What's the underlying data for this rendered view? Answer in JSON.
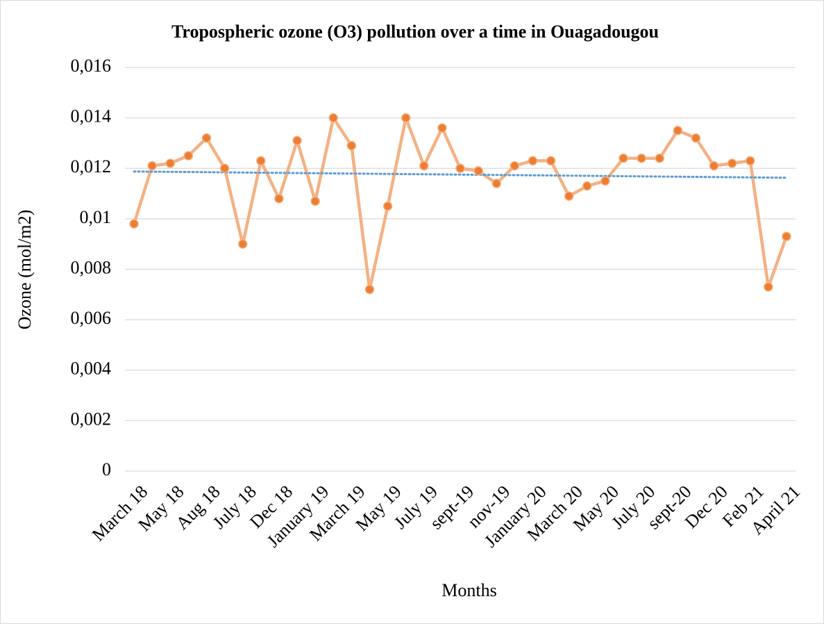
{
  "chart_data": {
    "type": "line",
    "title": "Tropospheric ozone (O3) pollution over a time in Ouagadougou",
    "x_label": "Months",
    "y_label": "Ozone (mol/m2)",
    "categories": [
      "March 18",
      null,
      "May 18",
      null,
      "Aug 18",
      null,
      "July 18",
      null,
      "Dec 18",
      null,
      "January 19",
      null,
      "March 19",
      null,
      "May 19",
      null,
      "July 19",
      null,
      "sept-19",
      null,
      "nov-19",
      null,
      "January 20",
      null,
      "March 20",
      null,
      "May 20",
      null,
      "July 20",
      null,
      "sept-20",
      null,
      "Dec 20",
      null,
      "Feb 21",
      null,
      "April 21"
    ],
    "series": [
      {
        "color": "#f4b183",
        "marker_color": "#ed7d31",
        "values": [
          0.0098,
          0.0121,
          0.0122,
          0.0125,
          0.0132,
          0.012,
          0.009,
          0.0123,
          0.0108,
          0.0131,
          0.0107,
          0.014,
          0.0129,
          0.0072,
          0.0105,
          0.014,
          0.0121,
          0.0136,
          0.012,
          0.0119,
          0.0114,
          0.0121,
          0.0123,
          0.0123,
          0.0109,
          0.0113,
          0.0115,
          0.0124,
          0.0124,
          0.0124,
          0.0135,
          0.0132,
          0.0121,
          0.0122,
          0.0123,
          0.0073,
          0.0093
        ]
      }
    ],
    "trendline": {
      "kind": "linear",
      "color": "#5b9bd5"
    },
    "ylim": [
      0,
      0.016
    ],
    "yticks": [
      0,
      {
        "value": 0.002,
        "label": "0,002"
      },
      {
        "value": 0.004,
        "label": "0,004"
      },
      {
        "value": 0.006,
        "label": "0,006"
      },
      {
        "value": 0.008,
        "label": "0,008"
      },
      {
        "value": 0.01,
        "label": "0,01"
      },
      {
        "value": 0.012,
        "label": "0,012"
      },
      {
        "value": 0.014,
        "label": "0,014"
      },
      {
        "value": 0.016,
        "label": "0,016"
      }
    ],
    "grid": true
  }
}
